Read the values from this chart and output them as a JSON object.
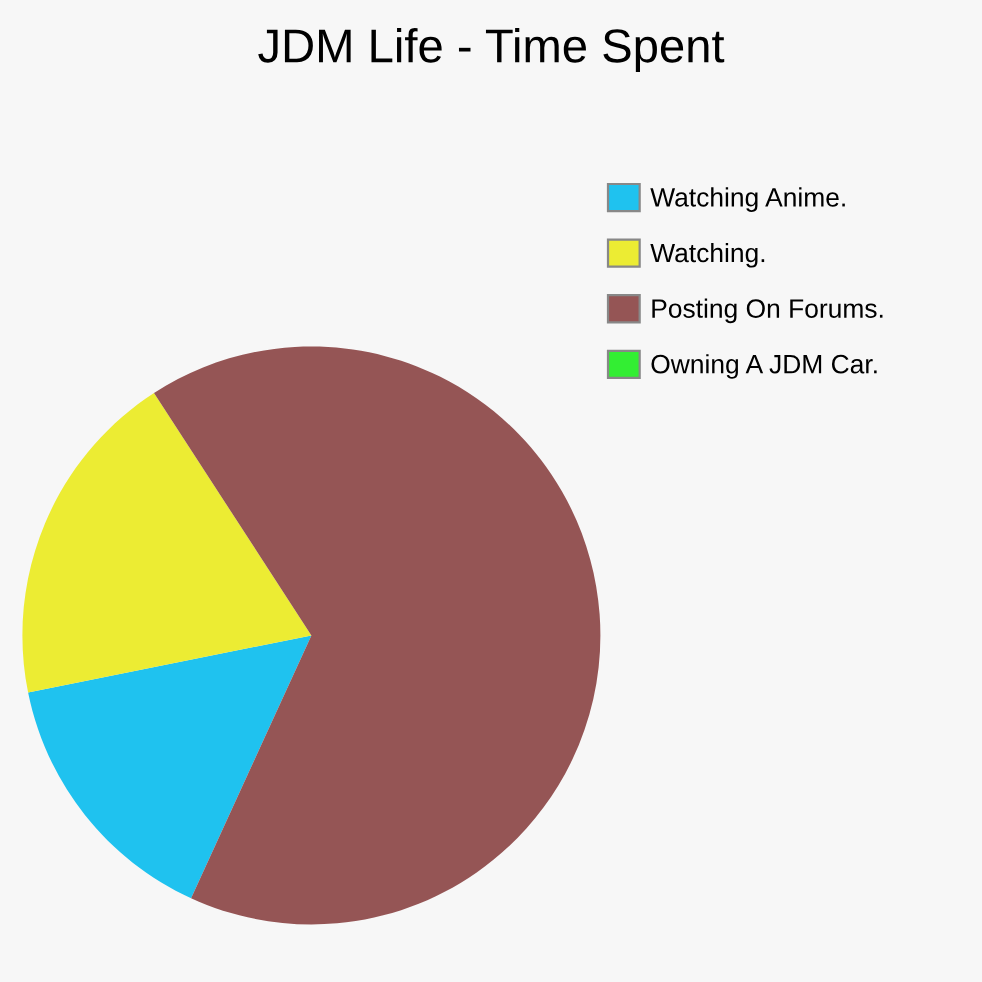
{
  "chart_data": {
    "type": "pie",
    "title": "JDM Life - Time Spent",
    "categories": [
      "Watching Anime.",
      "Watching.",
      "Posting On Forums.",
      "Owning A JDM Car."
    ],
    "values": [
      15,
      19,
      66,
      0
    ],
    "colors": [
      "#1fc2ef",
      "#ecec33",
      "#955555",
      "#33ee33"
    ],
    "legend": "top right"
  }
}
